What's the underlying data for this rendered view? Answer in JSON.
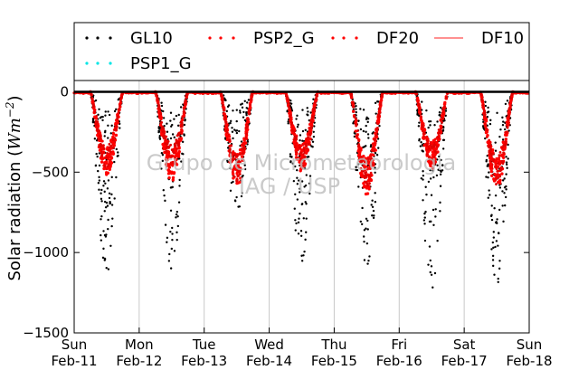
{
  "chart_data": {
    "type": "scatter",
    "title": "",
    "ylabel_main": "Solar radiation (",
    "ylabel_unit": "Wm",
    "ylabel_exp": "−2",
    "ylabel_close": ")",
    "xlabel": "",
    "ylim": [
      -1500,
      70
    ],
    "xlim": [
      0,
      7
    ],
    "yticks": [
      {
        "value": 0,
        "label": "0"
      },
      {
        "value": -500,
        "label": "−500"
      },
      {
        "value": -1000,
        "label": "−1000"
      },
      {
        "value": -1500,
        "label": "−1500"
      }
    ],
    "xticks": [
      {
        "value": 0,
        "day": "Sun",
        "date": "Feb-11"
      },
      {
        "value": 1,
        "day": "Mon",
        "date": "Feb-12"
      },
      {
        "value": 2,
        "day": "Tue",
        "date": "Feb-13"
      },
      {
        "value": 3,
        "day": "Wed",
        "date": "Feb-14"
      },
      {
        "value": 4,
        "day": "Thu",
        "date": "Feb-15"
      },
      {
        "value": 5,
        "day": "Fri",
        "date": "Feb-16"
      },
      {
        "value": 6,
        "day": "Sat",
        "date": "Feb-17"
      },
      {
        "value": 7,
        "day": "Sun",
        "date": "Feb-18"
      }
    ],
    "grid": "vertical",
    "legend_position": "top",
    "watermark": [
      "Grupo de Micrometeorologia",
      "IAG / USP"
    ],
    "series": [
      {
        "name": "GL10",
        "color": "#000000",
        "marker": "dot"
      },
      {
        "name": "PSP2_G",
        "color": "#ff0000",
        "marker": "dot"
      },
      {
        "name": "DF20",
        "color": "#ff0000",
        "marker": "dot"
      },
      {
        "name": "DF10",
        "color": "#ff6b6b",
        "marker": "line"
      },
      {
        "name": "PSP1_G",
        "color": "#00e5e5",
        "marker": "dot"
      }
    ],
    "daily_peaks": [
      {
        "day": 0,
        "GL10_min": -1150,
        "PSP2_G_min": -520,
        "DF20_min": -480
      },
      {
        "day": 1,
        "GL10_min": -1110,
        "PSP2_G_min": -560,
        "DF20_min": -470
      },
      {
        "day": 2,
        "GL10_min": -820,
        "PSP2_G_min": -600,
        "DF20_min": -560
      },
      {
        "day": 3,
        "GL10_min": -1130,
        "PSP2_G_min": -500,
        "DF20_min": -470
      },
      {
        "day": 4,
        "GL10_min": -1150,
        "PSP2_G_min": -640,
        "DF20_min": -600
      },
      {
        "day": 5,
        "GL10_min": -1240,
        "PSP2_G_min": -480,
        "DF20_min": -450
      },
      {
        "day": 6,
        "GL10_min": -1220,
        "PSP2_G_min": -610,
        "DF20_min": -580
      }
    ]
  }
}
